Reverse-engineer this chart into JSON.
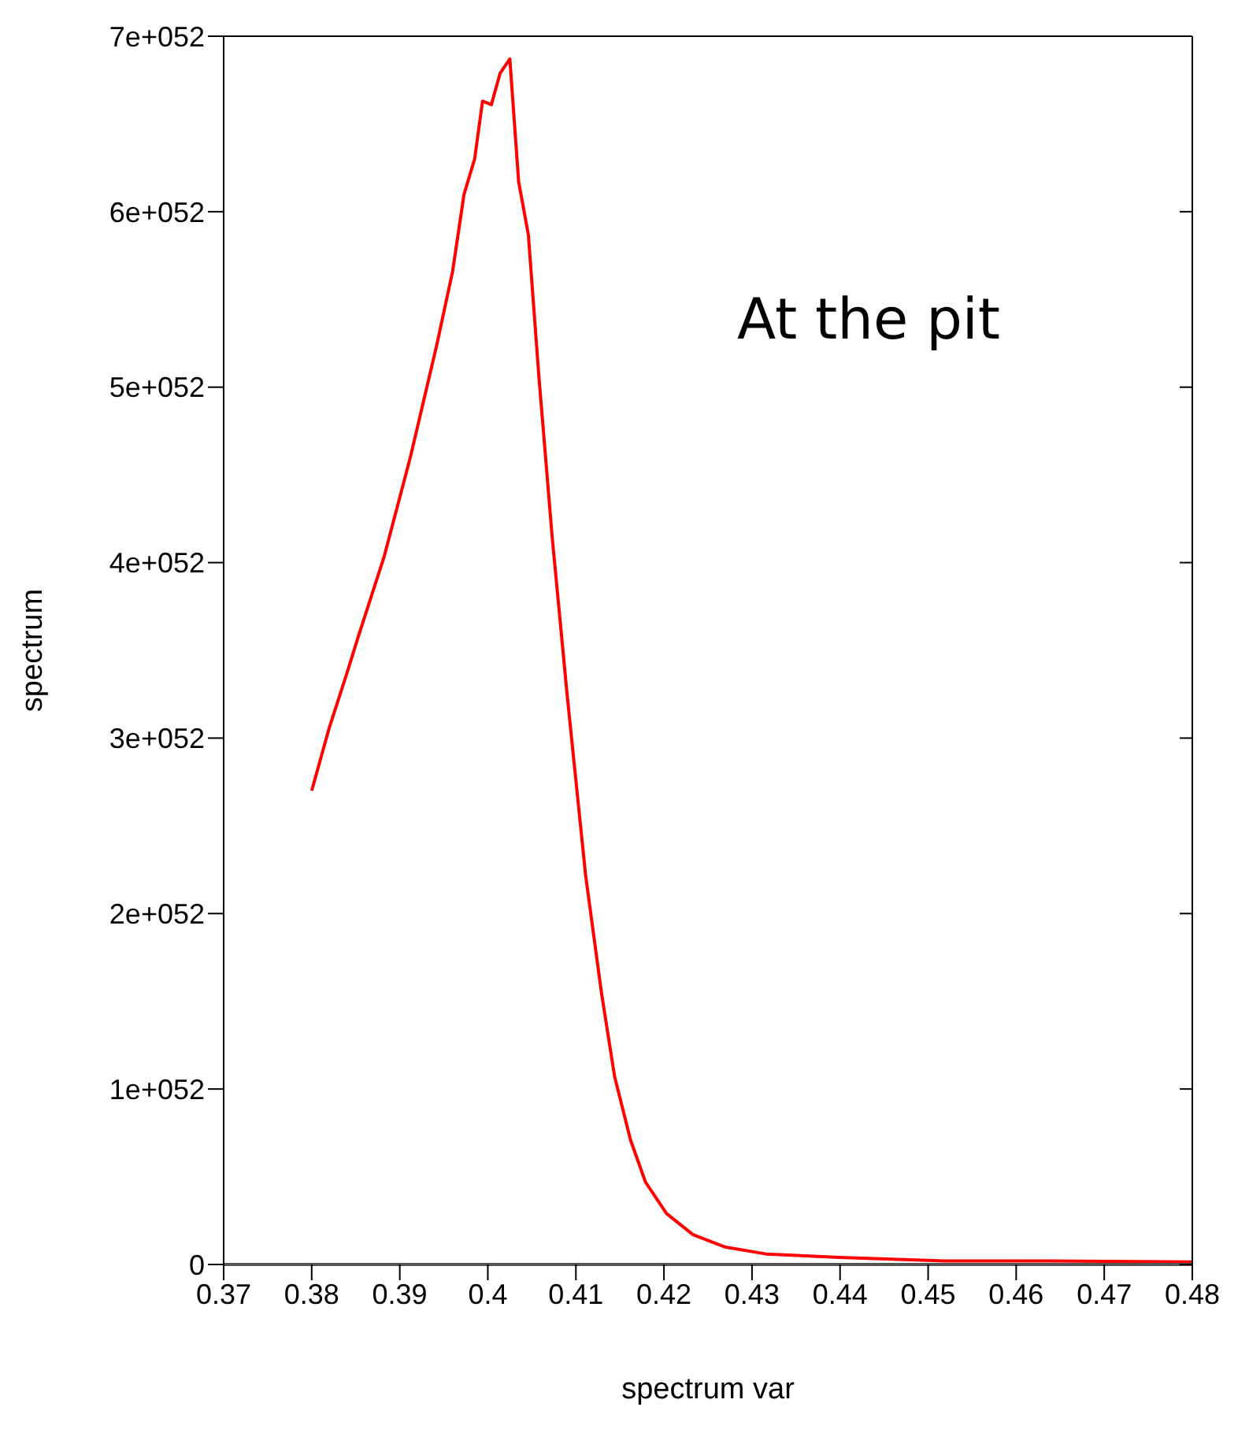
{
  "chart_data": {
    "type": "line",
    "xlabel": "spectrum var",
    "ylabel": "spectrum",
    "annotations": [
      "At the pit"
    ],
    "x": [
      0.38,
      0.382,
      0.384,
      0.3853,
      0.3882,
      0.3912,
      0.3942,
      0.396,
      0.3973,
      0.3985,
      0.3994,
      0.4004,
      0.4014,
      0.4025,
      0.4035,
      0.4046,
      0.4058,
      0.4073,
      0.409,
      0.4111,
      0.4129,
      0.4144,
      0.4162,
      0.4179,
      0.4203,
      0.4233,
      0.4269,
      0.4316,
      0.4399,
      0.4518,
      0.4637,
      0.48
    ],
    "series": [
      {
        "color": "#ff0000",
        "values": [
          2.7e+52,
          3.06e+52,
          3.37e+52,
          3.58e+52,
          4.03e+52,
          4.6e+52,
          5.24e+52,
          5.66e+52,
          6.1e+52,
          6.3e+52,
          6.63e+52,
          6.61e+52,
          6.79e+52,
          6.87e+52,
          6.17e+52,
          5.87e+52,
          5.06e+52,
          4.15e+52,
          3.25e+52,
          2.22e+52,
          1.55e+52,
          1.07e+52,
          7.1e+51,
          4.7e+51,
          2.9e+51,
          1.7e+51,
          1e+51,
          6e+50,
          4e+50,
          2e+50,
          2e+50,
          1.5e+50
        ]
      }
    ],
    "xlim": [
      0.37,
      0.48
    ],
    "xticks": [
      0.37,
      0.38,
      0.39,
      0.4,
      0.41,
      0.42,
      0.43,
      0.44,
      0.45,
      0.46,
      0.47,
      0.48
    ],
    "ylim": [
      0,
      7e+52
    ],
    "yticks": [
      0,
      {
        "value": 1e+52,
        "label": "1e+052"
      },
      {
        "value": 2e+52,
        "label": "2e+052"
      },
      {
        "value": 3e+52,
        "label": "3e+052"
      },
      {
        "value": 4e+52,
        "label": "4e+052"
      },
      {
        "value": 5e+52,
        "label": "5e+052"
      },
      {
        "value": 6e+52,
        "label": "6e+052"
      },
      {
        "value": 7e+52,
        "label": "7e+052"
      }
    ],
    "grid": false,
    "legend": false,
    "marker": "none",
    "line_style": "solid"
  }
}
